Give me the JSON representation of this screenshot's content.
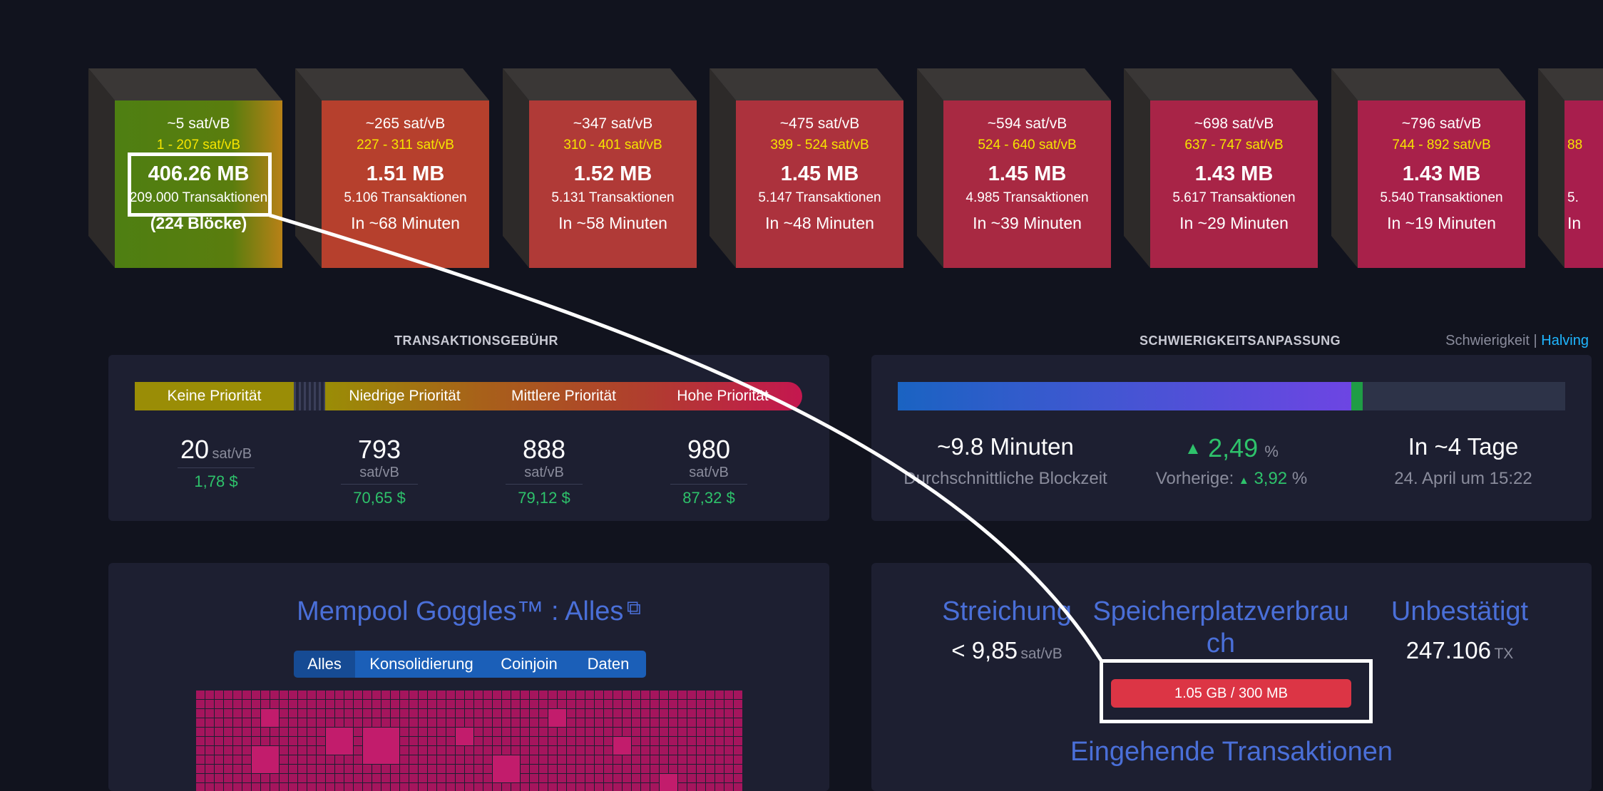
{
  "blocks": [
    {
      "fee": "~5 sat/vB",
      "range": "1 - 207 sat/vB",
      "size": "406.26 MB",
      "tx": "209.000 Transaktionen",
      "eta": "(224 Blöcke)"
    },
    {
      "fee": "~265 sat/vB",
      "range": "227 - 311 sat/vB",
      "size": "1.51 MB",
      "tx": "5.106 Transaktionen",
      "eta": "In ~68 Minuten"
    },
    {
      "fee": "~347 sat/vB",
      "range": "310 - 401 sat/vB",
      "size": "1.52 MB",
      "tx": "5.131 Transaktionen",
      "eta": "In ~58 Minuten"
    },
    {
      "fee": "~475 sat/vB",
      "range": "399 - 524 sat/vB",
      "size": "1.45 MB",
      "tx": "5.147 Transaktionen",
      "eta": "In ~48 Minuten"
    },
    {
      "fee": "~594 sat/vB",
      "range": "524 - 640 sat/vB",
      "size": "1.45 MB",
      "tx": "4.985 Transaktionen",
      "eta": "In ~39 Minuten"
    },
    {
      "fee": "~698 sat/vB",
      "range": "637 - 747 sat/vB",
      "size": "1.43 MB",
      "tx": "5.617 Transaktionen",
      "eta": "In ~29 Minuten"
    },
    {
      "fee": "~796 sat/vB",
      "range": "744 - 892 sat/vB",
      "size": "1.43 MB",
      "tx": "5.540 Transaktionen",
      "eta": "In ~19 Minuten"
    },
    {
      "fee": "",
      "range": "88",
      "size": "",
      "tx": "5.",
      "eta": "In"
    }
  ],
  "fees": {
    "title": "TRANSAKTIONSGEBÜHR",
    "priorities": [
      "Keine Priorität",
      "Niedrige Priorität",
      "Mittlere Priorität",
      "Hohe Priorität"
    ],
    "values": [
      {
        "value": "20",
        "unit": "sat/vB",
        "usd": "1,78 $"
      },
      {
        "value": "793",
        "unit": "sat/vB",
        "usd": "70,65 $"
      },
      {
        "value": "888",
        "unit": "sat/vB",
        "usd": "79,12 $"
      },
      {
        "value": "980",
        "unit": "sat/vB",
        "usd": "87,32 $"
      }
    ]
  },
  "difficulty": {
    "title": "SCHWIERIGKEITSANPASSUNG",
    "link_left": "Schwierigkeit",
    "separator": "|",
    "link_right": "Halving",
    "progress": 0.68,
    "blocktime": "~9.8 Minuten",
    "blocktime_label": "Durchschnittliche Blockzeit",
    "change": "2,49",
    "change_unit": "%",
    "previous_label": "Vorherige:",
    "previous": "3,92",
    "previous_unit": "%",
    "eta": "In ~4 Tage",
    "eta_date": "24. April um 15:22"
  },
  "goggles": {
    "title": "Mempool Goggles™ : Alles",
    "tabs": [
      "Alles",
      "Konsolidierung",
      "Coinjoin",
      "Daten"
    ]
  },
  "mempool": {
    "purge_label": "Streichung",
    "purge_value": "< 9,85",
    "purge_unit": "sat/vB",
    "memory_label_1": "Speicherplatzverbrau",
    "memory_label_2": "ch",
    "memory_value": "1.05 GB / 300 MB",
    "unconfirmed_label": "Unbestätigt",
    "unconfirmed_value": "247.106",
    "unconfirmed_unit": "TX",
    "incoming_title": "Eingehende Transaktionen"
  },
  "colors": {
    "green": "#2ec26b",
    "link": "#4a6fd8",
    "halving": "#1fb6ff",
    "memory_bar": "#dc3545"
  }
}
